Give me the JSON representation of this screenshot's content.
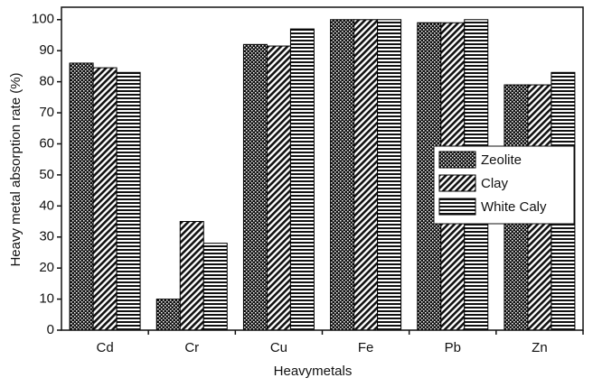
{
  "chart_data": {
    "type": "bar",
    "x_label": "Heavymetals",
    "y_label": "Heavy metal absorption rate (%)",
    "categories": [
      "Cd",
      "Cr",
      "Cu",
      "Fe",
      "Pb",
      "Zn"
    ],
    "series": [
      {
        "name": "Zeolite",
        "color": "#000000",
        "values": [
          86,
          10,
          92,
          100,
          99,
          79
        ]
      },
      {
        "name": "Clay",
        "color": "#000000",
        "values": [
          84.5,
          35,
          91.5,
          100,
          99,
          79
        ]
      },
      {
        "name": "White Caly",
        "color": "#000000",
        "values": [
          83,
          28,
          97,
          100,
          100,
          83
        ]
      }
    ],
    "ylim": [
      0,
      104
    ],
    "yticks": [
      0,
      10,
      20,
      30,
      40,
      50,
      60,
      70,
      80,
      90,
      100
    ],
    "legend": "right"
  }
}
